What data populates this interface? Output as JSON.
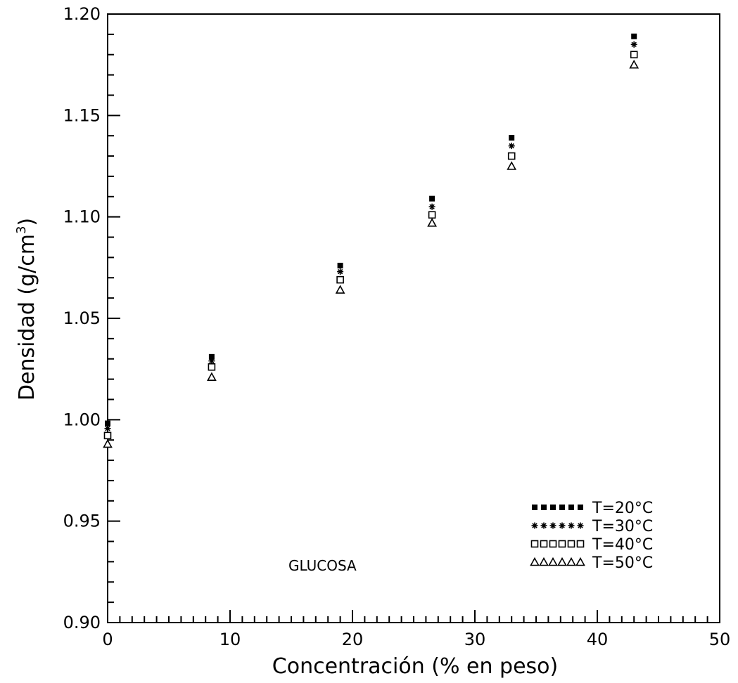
{
  "chart_data": {
    "type": "scatter",
    "xlabel": "Concentración (% en peso)",
    "ylabel_text": "Densidad (g/cm",
    "ylabel_superscript": "3",
    "ylabel_close": ")",
    "xlim": [
      0,
      50
    ],
    "ylim": [
      0.9,
      1.2
    ],
    "x_ticks": [
      "0",
      "10",
      "20",
      "30",
      "40",
      "50"
    ],
    "y_ticks": [
      "0.90",
      "0.95",
      "1.00",
      "1.05",
      "1.10",
      "1.15",
      "1.20"
    ],
    "grid": false,
    "legend_position": "bottom-right",
    "annotation": "GLUCOSA",
    "series": [
      {
        "name": "T=20°C",
        "marker": "filled-square",
        "points": [
          [
            0,
            0.9982
          ],
          [
            8.5,
            1.031
          ],
          [
            19,
            1.076
          ],
          [
            26.5,
            1.109
          ],
          [
            33,
            1.139
          ],
          [
            43,
            1.189
          ]
        ]
      },
      {
        "name": "T=30°C",
        "marker": "asterisk",
        "points": [
          [
            0,
            0.9957
          ],
          [
            8.5,
            1.029
          ],
          [
            19,
            1.073
          ],
          [
            26.5,
            1.105
          ],
          [
            33,
            1.135
          ],
          [
            43,
            1.185
          ]
        ]
      },
      {
        "name": "T=40°C",
        "marker": "open-square",
        "points": [
          [
            0,
            0.9922
          ],
          [
            8.5,
            1.026
          ],
          [
            19,
            1.069
          ],
          [
            26.5,
            1.101
          ],
          [
            33,
            1.13
          ],
          [
            43,
            1.18
          ]
        ]
      },
      {
        "name": "T=50°C",
        "marker": "open-triangle",
        "points": [
          [
            0,
            0.988
          ],
          [
            8.5,
            1.021
          ],
          [
            19,
            1.064
          ],
          [
            26.5,
            1.097
          ],
          [
            33,
            1.125
          ],
          [
            43,
            1.175
          ]
        ]
      }
    ]
  }
}
